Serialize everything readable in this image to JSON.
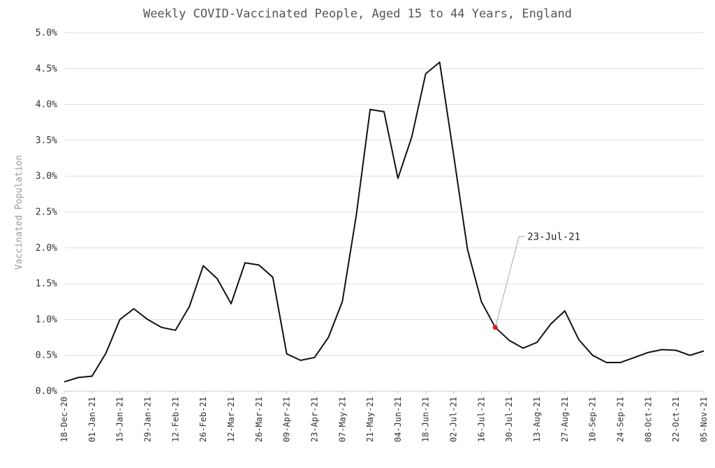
{
  "chart_data": {
    "type": "line",
    "title": "Weekly COVID-Vaccinated People, Aged 15 to 44 Years, England",
    "xlabel": "",
    "ylabel": "Vaccinated Population",
    "ylim": [
      0,
      5.0
    ],
    "yticks": [
      "0.0%",
      "0.5%",
      "1.0%",
      "1.5%",
      "2.0%",
      "2.5%",
      "3.0%",
      "3.5%",
      "4.0%",
      "4.5%",
      "5.0%"
    ],
    "x_tick_labels": [
      "18-Dec-20",
      "01-Jan-21",
      "15-Jan-21",
      "29-Jan-21",
      "12-Feb-21",
      "26-Feb-21",
      "12-Mar-21",
      "26-Mar-21",
      "09-Apr-21",
      "23-Apr-21",
      "07-May-21",
      "21-May-21",
      "04-Jun-21",
      "18-Jun-21",
      "02-Jul-21",
      "16-Jul-21",
      "30-Jul-21",
      "13-Aug-21",
      "27-Aug-21",
      "10-Sep-21",
      "24-Sep-21",
      "08-Oct-21",
      "22-Oct-21",
      "05-Nov-21"
    ],
    "grid": true,
    "series": [
      {
        "name": "",
        "color": "#111111",
        "x": [
          "18-Dec-20",
          "25-Dec-20",
          "01-Jan-21",
          "08-Jan-21",
          "15-Jan-21",
          "22-Jan-21",
          "29-Jan-21",
          "05-Feb-21",
          "12-Feb-21",
          "19-Feb-21",
          "26-Feb-21",
          "05-Mar-21",
          "12-Mar-21",
          "19-Mar-21",
          "26-Mar-21",
          "02-Apr-21",
          "09-Apr-21",
          "16-Apr-21",
          "23-Apr-21",
          "30-Apr-21",
          "07-May-21",
          "14-May-21",
          "21-May-21",
          "28-May-21",
          "04-Jun-21",
          "11-Jun-21",
          "18-Jun-21",
          "25-Jun-21",
          "02-Jul-21",
          "09-Jul-21",
          "16-Jul-21",
          "23-Jul-21",
          "30-Jul-21",
          "06-Aug-21",
          "13-Aug-21",
          "20-Aug-21",
          "27-Aug-21",
          "03-Sep-21",
          "10-Sep-21",
          "17-Sep-21",
          "24-Sep-21",
          "01-Oct-21",
          "08-Oct-21",
          "15-Oct-21",
          "22-Oct-21",
          "29-Oct-21",
          "05-Nov-21"
        ],
        "values": [
          0.13,
          0.19,
          0.21,
          0.53,
          1.0,
          1.15,
          1.0,
          0.89,
          0.85,
          1.18,
          1.75,
          1.57,
          1.22,
          1.79,
          1.76,
          1.59,
          0.52,
          0.43,
          0.47,
          0.75,
          1.25,
          2.45,
          3.93,
          3.9,
          2.97,
          3.55,
          4.43,
          4.59,
          3.3,
          1.98,
          1.25,
          0.89,
          0.71,
          0.6,
          0.68,
          0.94,
          1.12,
          0.72,
          0.5,
          0.4,
          0.4,
          0.47,
          0.54,
          0.58,
          0.57,
          0.5,
          0.56
        ]
      }
    ],
    "annotation": {
      "label": "23-Jul-21",
      "x": "23-Jul-21",
      "value": 0.89,
      "marker_color": "#e02020",
      "leader_color": "#aaaaaa"
    }
  }
}
